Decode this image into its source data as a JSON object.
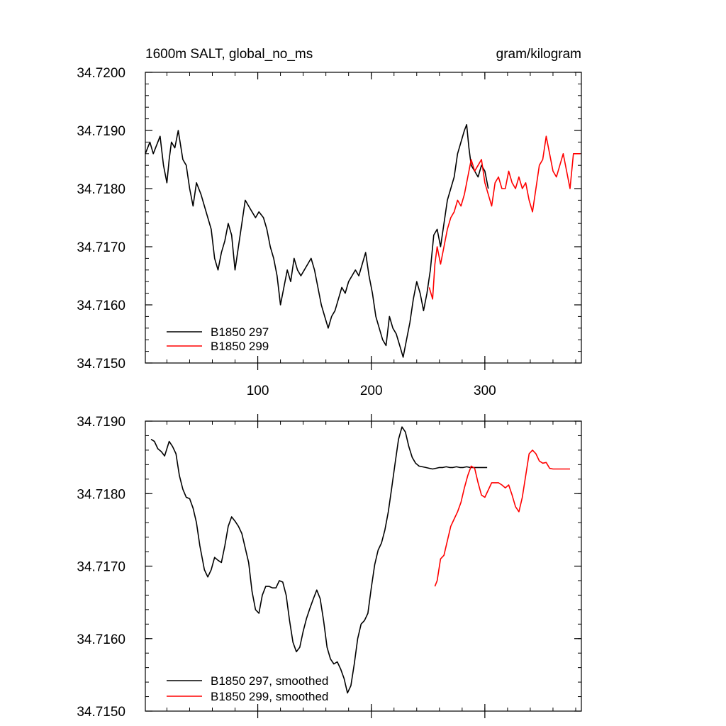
{
  "chart_data": [
    {
      "type": "line",
      "title_left": "1600m SALT, global_no_ms",
      "title_right": "gram/kilogram",
      "xlim": [
        1,
        385
      ],
      "ylim": [
        34.715,
        34.72
      ],
      "x_ticks": [
        100,
        200,
        300
      ],
      "x_tick_labels": [
        "100",
        "200",
        "300"
      ],
      "y_ticks": [
        34.715,
        34.716,
        34.717,
        34.718,
        34.719,
        34.72
      ],
      "y_tick_labels": [
        "34.7150",
        "34.7160",
        "34.7170",
        "34.7180",
        "34.7190",
        "34.7200"
      ],
      "legend": {
        "placement": "bottom-left"
      },
      "series": [
        {
          "name": "B1850 297",
          "color": "#000000",
          "x": [
            1,
            5,
            8,
            10,
            12,
            14,
            17,
            20,
            22,
            24,
            27,
            30,
            34,
            37,
            40,
            43,
            46,
            50,
            53,
            56,
            59,
            62,
            65,
            68,
            71,
            74,
            77,
            80,
            83,
            86,
            89,
            92,
            95,
            98,
            101,
            105,
            108,
            111,
            114,
            117,
            120,
            123,
            126,
            129,
            132,
            135,
            138,
            141,
            144,
            147,
            150,
            153,
            156,
            159,
            162,
            165,
            168,
            171,
            174,
            177,
            180,
            183,
            186,
            189,
            192,
            195,
            198,
            201,
            204,
            207,
            210,
            213,
            216,
            219,
            222,
            225,
            228,
            231,
            234,
            237,
            240,
            243,
            246,
            249,
            252,
            255,
            258,
            261,
            264,
            267,
            270,
            273,
            276,
            279,
            282,
            284,
            286,
            288,
            291,
            294,
            297,
            300,
            303
          ],
          "y": [
            34.7186,
            34.7188,
            34.7186,
            34.7187,
            34.7188,
            34.7189,
            34.7184,
            34.7181,
            34.7185,
            34.7188,
            34.7187,
            34.719,
            34.7185,
            34.7184,
            34.718,
            34.7177,
            34.7181,
            34.7179,
            34.7177,
            34.7175,
            34.7173,
            34.7168,
            34.7166,
            34.7169,
            34.7171,
            34.7174,
            34.7172,
            34.7166,
            34.717,
            34.7174,
            34.7178,
            34.7177,
            34.7176,
            34.7175,
            34.7176,
            34.7175,
            34.7173,
            34.717,
            34.7168,
            34.7165,
            34.716,
            34.7163,
            34.7166,
            34.7164,
            34.7168,
            34.7166,
            34.7165,
            34.7166,
            34.7167,
            34.7168,
            34.7166,
            34.7163,
            34.716,
            34.7158,
            34.7156,
            34.7158,
            34.7159,
            34.7161,
            34.7163,
            34.7162,
            34.7164,
            34.7165,
            34.7166,
            34.7165,
            34.7167,
            34.7169,
            34.7165,
            34.7162,
            34.7158,
            34.7156,
            34.7154,
            34.7153,
            34.7158,
            34.7156,
            34.7155,
            34.7153,
            34.7151,
            34.7154,
            34.7157,
            34.7161,
            34.7164,
            34.7162,
            34.7159,
            34.7162,
            34.7166,
            34.7172,
            34.7173,
            34.717,
            34.7174,
            34.7178,
            34.718,
            34.7182,
            34.7186,
            34.7188,
            34.719,
            34.7191,
            34.7187,
            34.7184,
            34.7183,
            34.7182,
            34.7184,
            34.7183,
            34.718
          ]
        },
        {
          "name": "B1850 299",
          "color": "#ff0000",
          "x": [
            251,
            254,
            256,
            258,
            261,
            264,
            267,
            270,
            273,
            276,
            279,
            282,
            285,
            288,
            291,
            294,
            297,
            300,
            303,
            306,
            309,
            312,
            315,
            318,
            321,
            324,
            327,
            330,
            333,
            336,
            339,
            342,
            345,
            348,
            351,
            354,
            357,
            360,
            363,
            366,
            369,
            372,
            375,
            378,
            381,
            384
          ],
          "y": [
            34.7163,
            34.7161,
            34.7167,
            34.717,
            34.7167,
            34.717,
            34.7173,
            34.7175,
            34.7176,
            34.7178,
            34.7177,
            34.7179,
            34.7182,
            34.7185,
            34.7183,
            34.7184,
            34.7185,
            34.7181,
            34.7179,
            34.7177,
            34.7181,
            34.7182,
            34.718,
            34.718,
            34.7183,
            34.7181,
            34.718,
            34.7182,
            34.718,
            34.7181,
            34.7178,
            34.7176,
            34.718,
            34.7184,
            34.7185,
            34.7189,
            34.7186,
            34.7183,
            34.7182,
            34.7184,
            34.7186,
            34.7183,
            34.718,
            34.7186,
            34.7186,
            34.7186
          ]
        }
      ]
    },
    {
      "type": "line",
      "xlim": [
        1,
        385
      ],
      "ylim": [
        34.715,
        34.719
      ],
      "y_ticks": [
        34.715,
        34.716,
        34.717,
        34.718,
        34.719
      ],
      "y_tick_labels": [
        "34.7150",
        "34.7160",
        "34.7170",
        "34.7180",
        "34.7190"
      ],
      "legend": {
        "placement": "bottom-left"
      },
      "series": [
        {
          "name": "B1850 297, smoothed",
          "color": "#000000",
          "x": [
            6,
            9,
            12,
            15,
            18,
            22,
            25,
            28,
            31,
            34,
            37,
            40,
            43,
            46,
            49,
            53,
            56,
            59,
            62,
            65,
            68,
            71,
            74,
            77,
            80,
            83,
            86,
            89,
            92,
            95,
            98,
            101,
            104,
            107,
            110,
            113,
            116,
            119,
            122,
            125,
            128,
            131,
            134,
            137,
            140,
            143,
            146,
            149,
            152,
            155,
            158,
            161,
            164,
            167,
            170,
            173,
            176,
            179,
            182,
            185,
            188,
            191,
            194,
            197,
            200,
            203,
            206,
            209,
            212,
            215,
            218,
            221,
            224,
            227,
            230,
            233,
            236,
            239,
            242,
            245,
            248,
            251,
            254,
            257,
            260,
            263,
            266,
            269,
            272,
            275,
            278,
            281,
            284,
            287,
            290,
            293,
            296,
            299,
            302
          ],
          "y": [
            34.71875,
            34.71872,
            34.71862,
            34.71858,
            34.71852,
            34.71872,
            34.71865,
            34.71855,
            34.71825,
            34.71806,
            34.71795,
            34.71793,
            34.7178,
            34.7176,
            34.71728,
            34.71695,
            34.71685,
            34.71695,
            34.71712,
            34.71708,
            34.71705,
            34.71728,
            34.71755,
            34.71768,
            34.71762,
            34.71755,
            34.71745,
            34.71725,
            34.71705,
            34.71665,
            34.7164,
            34.71635,
            34.7166,
            34.71672,
            34.71672,
            34.7167,
            34.7167,
            34.7168,
            34.71678,
            34.7166,
            34.71625,
            34.71595,
            34.71582,
            34.71588,
            34.7161,
            34.71628,
            34.71642,
            34.71655,
            34.71667,
            34.71655,
            34.71625,
            34.71588,
            34.71572,
            34.71565,
            34.71568,
            34.71558,
            34.71545,
            34.71525,
            34.71535,
            34.71565,
            34.716,
            34.7162,
            34.71625,
            34.71635,
            34.7167,
            34.71702,
            34.71722,
            34.71732,
            34.7175,
            34.71775,
            34.71808,
            34.71842,
            34.71875,
            34.71892,
            34.71885,
            34.71865,
            34.7185,
            34.71842,
            34.71838,
            34.71837,
            34.71836,
            34.71835,
            34.71834,
            34.71835,
            34.71836,
            34.71836,
            34.71837,
            34.71836,
            34.71836,
            34.71837,
            34.71836,
            34.71836,
            34.71837,
            34.71836,
            34.71836,
            34.71836,
            34.71836,
            34.71836,
            34.71836
          ]
        },
        {
          "name": "B1850 299, smoothed",
          "color": "#ff0000",
          "x": [
            256,
            258,
            261,
            264,
            267,
            270,
            273,
            276,
            279,
            282,
            285,
            288,
            291,
            294,
            297,
            300,
            303,
            306,
            309,
            312,
            315,
            318,
            321,
            324,
            327,
            330,
            333,
            336,
            339,
            342,
            345,
            348,
            351,
            354,
            357,
            360,
            363,
            366,
            369,
            372,
            375
          ],
          "y": [
            34.71672,
            34.7168,
            34.7171,
            34.71715,
            34.71735,
            34.71755,
            34.71765,
            34.71775,
            34.71788,
            34.71808,
            34.71825,
            34.71838,
            34.71835,
            34.71815,
            34.71798,
            34.71795,
            34.71805,
            34.71815,
            34.71815,
            34.71815,
            34.71812,
            34.71808,
            34.71812,
            34.71798,
            34.71782,
            34.71775,
            34.71795,
            34.71825,
            34.71855,
            34.7186,
            34.71855,
            34.71845,
            34.71842,
            34.71843,
            34.71835,
            34.71834,
            34.71834,
            34.71834,
            34.71834,
            34.71834,
            34.71834
          ]
        }
      ]
    }
  ]
}
